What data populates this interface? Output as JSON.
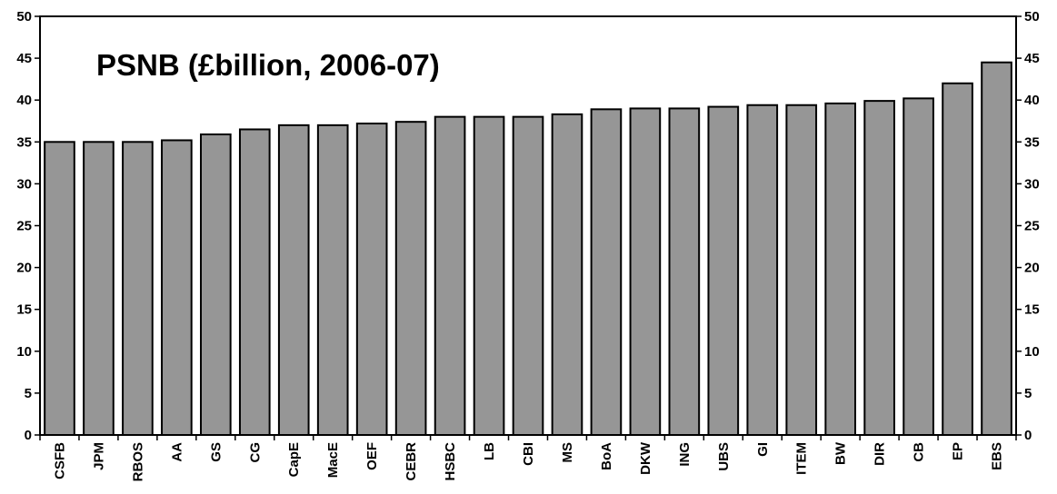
{
  "chart_data": {
    "type": "bar",
    "title": "PSNB (£billion, 2006-07)",
    "xlabel": "",
    "ylabel": "",
    "categories": [
      "CSFB",
      "JPM",
      "RBOS",
      "AA",
      "GS",
      "CG",
      "CapE",
      "MacE",
      "OEF",
      "CEBR",
      "HSBC",
      "LB",
      "CBI",
      "MS",
      "BoA",
      "DKW",
      "ING",
      "UBS",
      "GI",
      "ITEM",
      "BW",
      "DIR",
      "CB",
      "EP",
      "EBS"
    ],
    "values": [
      35.0,
      35.0,
      35.0,
      35.2,
      35.9,
      36.5,
      37.0,
      37.0,
      37.2,
      37.4,
      38.0,
      38.0,
      38.0,
      38.3,
      38.9,
      39.0,
      39.0,
      39.2,
      39.4,
      39.4,
      39.6,
      39.9,
      40.2,
      42.0,
      44.5
    ],
    "ylim": [
      0,
      50
    ],
    "yticks": [
      0,
      5,
      10,
      15,
      20,
      25,
      30,
      35,
      40,
      45,
      50
    ],
    "y_axis_both_sides": true,
    "grid": false,
    "legend": "none",
    "bar_color": "#969696",
    "bar_edge_color": "#000000"
  }
}
